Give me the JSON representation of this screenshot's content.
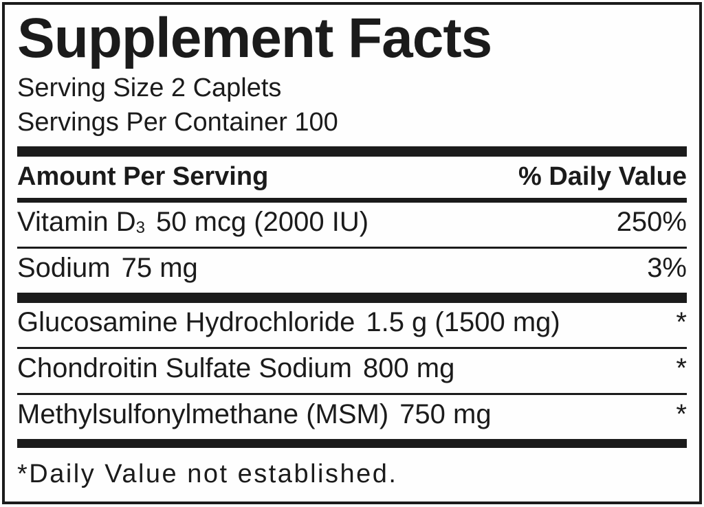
{
  "label": {
    "title": "Supplement Facts",
    "serving_size": "Serving Size 2 Caplets",
    "servings_per_container": "Servings Per Container 100",
    "header": {
      "amount": "Amount Per Serving",
      "daily_value": "% Daily Value"
    },
    "rows": [
      {
        "name": "Vitamin D",
        "subscript": "3",
        "amount": "50 mcg (2000 IU)",
        "daily_value": "250%"
      },
      {
        "name": "Sodium",
        "subscript": "",
        "amount": "75 mg",
        "daily_value": "3%"
      },
      {
        "name": "Glucosamine Hydrochloride",
        "subscript": "",
        "amount": "1.5 g (1500 mg)",
        "daily_value": "*"
      },
      {
        "name": "Chondroitin Sulfate Sodium",
        "subscript": "",
        "amount": "800 mg",
        "daily_value": "*"
      },
      {
        "name": "Methylsulfonylmethane (MSM)",
        "subscript": "",
        "amount": "750 mg",
        "daily_value": "*"
      }
    ],
    "footnote": "*Daily Value not established.",
    "colors": {
      "ink": "#1b1b1b",
      "background": "#fefefe"
    }
  }
}
